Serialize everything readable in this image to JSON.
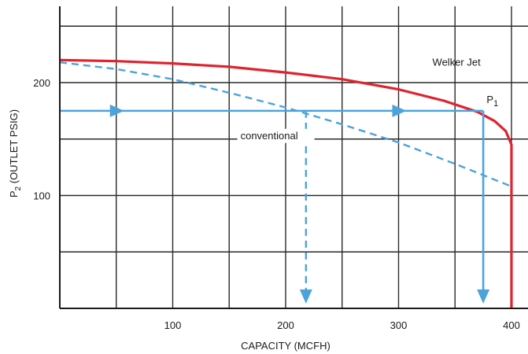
{
  "chart_data": {
    "type": "line",
    "xlabel": "CAPACITY (MCFH)",
    "ylabel_main": "P",
    "ylabel_sub": "2",
    "ylabel_rest": " (OUTLET PSIG)",
    "xlim": [
      0,
      405
    ],
    "ylim": [
      0,
      250
    ],
    "x_ticks": [
      100,
      200,
      300,
      400
    ],
    "y_ticks": [
      100,
      200
    ],
    "grid": true,
    "series": [
      {
        "name": "Welker Jet",
        "color": "#e0232d",
        "style": "solid",
        "x": [
          0,
          50,
          100,
          150,
          200,
          250,
          300,
          340,
          370,
          385,
          395,
          400,
          400
        ],
        "y": [
          220,
          219,
          217,
          214,
          209,
          203,
          194,
          184,
          174,
          166,
          157,
          145,
          0
        ]
      },
      {
        "name": "conventional",
        "color": "#4ca3dc",
        "style": "dashed",
        "x": [
          0,
          50,
          100,
          150,
          200,
          250,
          300,
          350,
          400
        ],
        "y": [
          218,
          212,
          203,
          191,
          178,
          163,
          147,
          128,
          108
        ]
      }
    ],
    "operating_line": {
      "color": "#4ca3dc",
      "y": 175,
      "x_start": 0,
      "x_end": 375,
      "drop_solid_x": 375,
      "drop_dashed_x": 218,
      "arrow_x": [
        50,
        300
      ]
    },
    "annotations": [
      {
        "text": "Welker Jet",
        "x": 330,
        "y": 215
      },
      {
        "text": "conventional",
        "x": 160,
        "y": 150
      },
      {
        "text": "P",
        "sub": "1",
        "x": 378,
        "y": 182
      }
    ]
  }
}
